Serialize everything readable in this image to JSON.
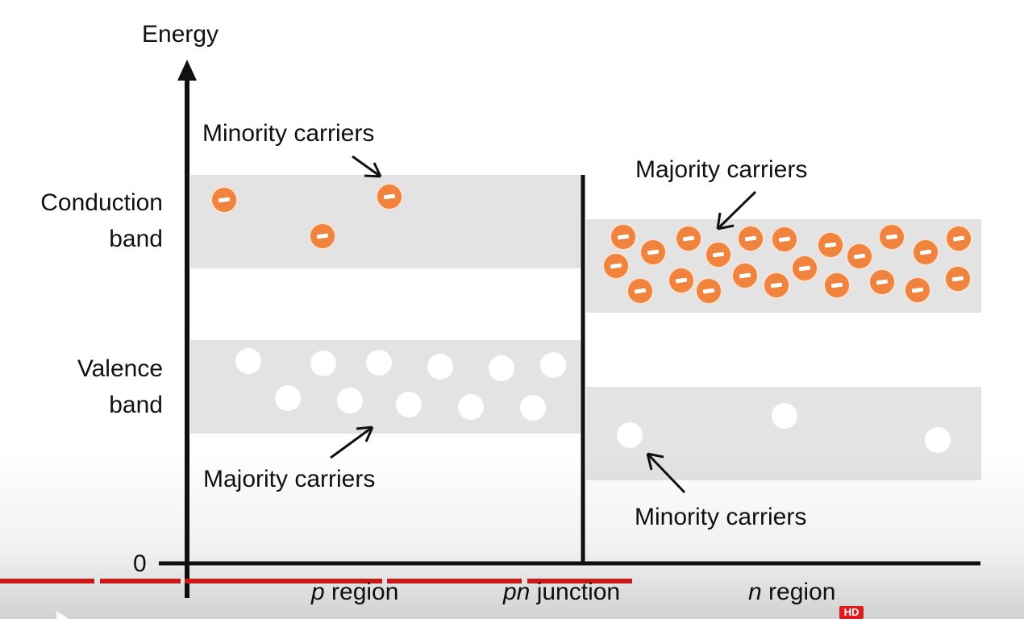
{
  "diagram": {
    "axis": {
      "y_label": "Energy",
      "origin_label": "0"
    },
    "band_labels": {
      "conduction": [
        "Conduction",
        "band"
      ],
      "valence": [
        "Valence",
        "band"
      ]
    },
    "annotations": {
      "p_minority": "Minority carriers",
      "p_majority": "Majority carriers",
      "n_majority": "Majority carriers",
      "n_minority": "Minority carriers"
    },
    "regions": {
      "p": {
        "italic": "p",
        "rest": " region"
      },
      "junction": {
        "italic": "pn",
        "rest": " junction"
      },
      "n": {
        "italic": "n",
        "rest": " region"
      }
    },
    "carrier_sign": "−",
    "colors": {
      "band_fill": "#e3e3e3",
      "electron": "#f0843f",
      "hole": "#ffffff",
      "axis": "#111111",
      "progress_played": "#e01b1b"
    }
  },
  "player": {
    "hd_badge": "HD",
    "progress_fraction": 0.62
  }
}
